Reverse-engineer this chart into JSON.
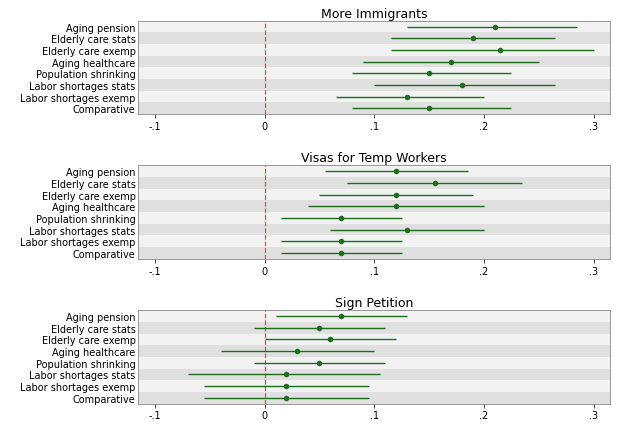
{
  "panels": [
    {
      "title": "More Immigrants",
      "categories": [
        "Aging pension",
        "Elderly care stats",
        "Elderly care exemp",
        "Aging healthcare",
        "Population shrinking",
        "Labor shortages stats",
        "Labor shortages exemp",
        "Comparative"
      ],
      "estimates": [
        0.21,
        0.19,
        0.215,
        0.17,
        0.15,
        0.18,
        0.13,
        0.15
      ],
      "ci_low": [
        0.13,
        0.115,
        0.115,
        0.09,
        0.08,
        0.1,
        0.065,
        0.08
      ],
      "ci_high": [
        0.285,
        0.265,
        0.3,
        0.25,
        0.225,
        0.265,
        0.2,
        0.225
      ]
    },
    {
      "title": "Visas for Temp Workers",
      "categories": [
        "Aging pension",
        "Elderly care stats",
        "Elderly care exemp",
        "Aging healthcare",
        "Population shrinking",
        "Labor shortages stats",
        "Labor shortages exemp",
        "Comparative"
      ],
      "estimates": [
        0.12,
        0.155,
        0.12,
        0.12,
        0.07,
        0.13,
        0.07,
        0.07
      ],
      "ci_low": [
        0.055,
        0.075,
        0.05,
        0.04,
        0.015,
        0.06,
        0.015,
        0.015
      ],
      "ci_high": [
        0.185,
        0.235,
        0.19,
        0.2,
        0.125,
        0.2,
        0.125,
        0.125
      ]
    },
    {
      "title": "Sign Petition",
      "categories": [
        "Aging pension",
        "Elderly care stats",
        "Elderly care exemp",
        "Aging healthcare",
        "Population shrinking",
        "Labor shortages stats",
        "Labor shortages exemp",
        "Comparative"
      ],
      "estimates": [
        0.07,
        0.05,
        0.06,
        0.03,
        0.05,
        0.02,
        0.02,
        0.02
      ],
      "ci_low": [
        0.01,
        -0.01,
        0.0,
        -0.04,
        -0.01,
        -0.07,
        -0.055,
        -0.055
      ],
      "ci_high": [
        0.13,
        0.11,
        0.12,
        0.1,
        0.11,
        0.105,
        0.095,
        0.095
      ]
    }
  ],
  "xlim": [
    -0.115,
    0.315
  ],
  "xticks": [
    -0.1,
    0,
    0.1,
    0.2,
    0.3
  ],
  "xticklabels": [
    "-.1",
    "0",
    ".1",
    ".2",
    ".3"
  ],
  "dot_color": "#1e6e1e",
  "ci_color": "#1e6e1e",
  "vline_color": "#d94f5c",
  "row_bg_light": "#f0f0f0",
  "row_bg_dark": "#dcdcdc",
  "panel_bg": "#e0e0e0",
  "figure_bg": "#ffffff",
  "dot_size": 4,
  "ci_linewidth": 1.0,
  "vline_style": "--",
  "label_fontsize": 7,
  "tick_fontsize": 7,
  "title_fontsize": 9
}
